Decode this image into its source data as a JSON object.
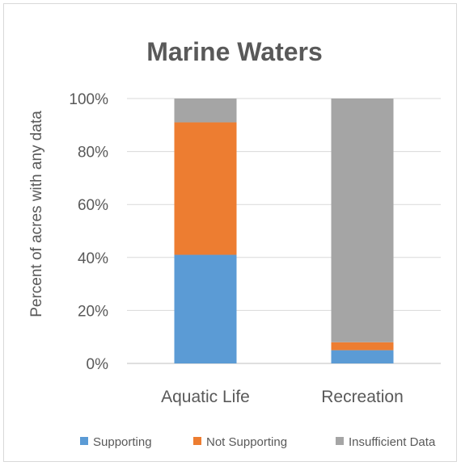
{
  "chart_data": {
    "type": "bar",
    "stacked": true,
    "title": "Marine Waters",
    "xlabel": "",
    "ylabel": "Percent of acres with any data",
    "categories": [
      "Aquatic Life",
      "Recreation"
    ],
    "series": [
      {
        "name": "Supporting",
        "color": "#5b9bd5",
        "values": [
          41,
          5
        ]
      },
      {
        "name": "Not Supporting",
        "color": "#ed7d31",
        "values": [
          50,
          3
        ]
      },
      {
        "name": "Insufficient Data",
        "color": "#a5a5a5",
        "values": [
          9,
          92
        ]
      }
    ],
    "ylim": [
      0,
      100
    ],
    "yticks": [
      "0%",
      "20%",
      "40%",
      "60%",
      "80%",
      "100%"
    ],
    "grid": true,
    "legend_position": "bottom"
  }
}
